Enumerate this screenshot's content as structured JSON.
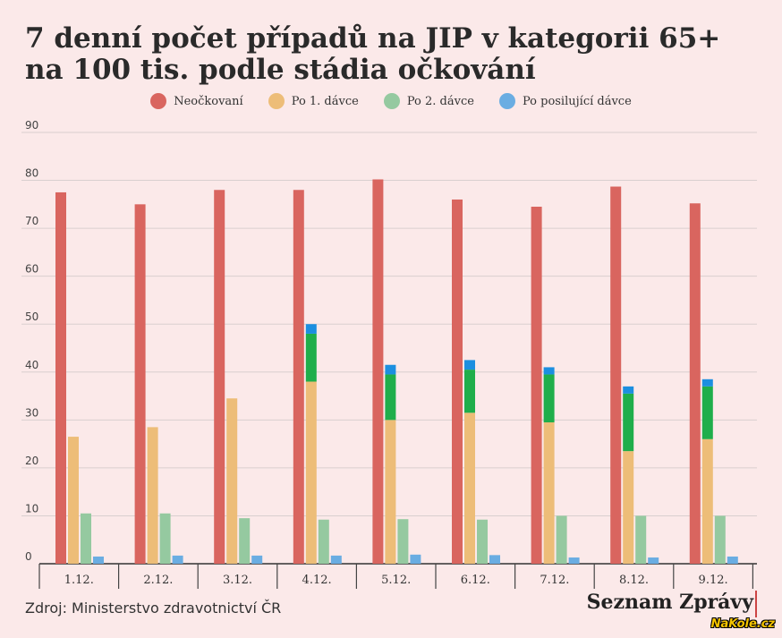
{
  "chart_data": {
    "type": "bar",
    "title_line1": "7 denní počet případů na JIP v kategorii 65+",
    "title_line2": "na 100 tis. podle stádia očkování",
    "categories": [
      "1.12.",
      "2.12.",
      "3.12.",
      "4.12.",
      "5.12.",
      "6.12.",
      "7.12.",
      "8.12.",
      "9.12."
    ],
    "ylim": [
      0,
      90
    ],
    "yticks": [
      "0",
      "10",
      "20",
      "30",
      "40",
      "50",
      "60",
      "70",
      "80",
      "90"
    ],
    "series": [
      {
        "name": "Neočkovaní",
        "color": "#d9655f",
        "values": [
          77.5,
          75,
          78,
          78,
          80.2,
          76,
          74.5,
          78.7,
          75.2
        ]
      },
      {
        "name": "Po 1. dávce",
        "color": "#edbd78",
        "values": [
          26.5,
          28.5,
          34.5,
          38,
          30,
          31.5,
          29.5,
          23.5,
          26
        ]
      },
      {
        "name": "Po 2. dávce",
        "color": "#95c9a0",
        "values": [
          10.5,
          10.5,
          9.5,
          9.2,
          9.3,
          9.2,
          10,
          10,
          10
        ]
      },
      {
        "name": "Po posilující dávce",
        "color": "#6aade2",
        "values": [
          1.5,
          1.7,
          1.7,
          1.7,
          1.9,
          1.8,
          1.3,
          1.3,
          1.5
        ]
      }
    ],
    "annotations": [
      {
        "category": "4.12.",
        "green_from": 38,
        "green_to": 48,
        "blue_to": 50
      },
      {
        "category": "5.12.",
        "green_from": 30,
        "green_to": 39.5,
        "blue_to": 41.5
      },
      {
        "category": "6.12.",
        "green_from": 31.5,
        "green_to": 40.5,
        "blue_to": 42.5
      },
      {
        "category": "7.12.",
        "green_from": 29.5,
        "green_to": 39.5,
        "blue_to": 41
      },
      {
        "category": "8.12.",
        "green_from": 23.5,
        "green_to": 35.5,
        "blue_to": 37
      },
      {
        "category": "9.12.",
        "green_from": 26,
        "green_to": 37,
        "blue_to": 38.5
      }
    ],
    "annotation_colors": {
      "green": "#1fae4b",
      "blue": "#1c8fe0"
    },
    "xlabel": "",
    "ylabel": "",
    "legend_position": "top-center",
    "grid": true
  },
  "footer": {
    "source": "Zdroj: Ministerstvo zdravotnictví ČR",
    "brand": "Seznam Zprávy",
    "watermark": "NaKole.cz"
  }
}
